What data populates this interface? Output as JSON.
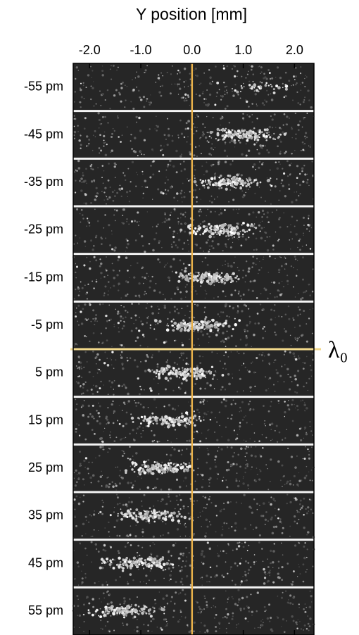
{
  "chart_data": {
    "type": "image-stack",
    "title": "Y position [mm]",
    "categories": [
      "-55 pm",
      "-45 pm",
      "-35 pm",
      "-25 pm",
      "-15 pm",
      "-5 pm",
      "5 pm",
      "15 pm",
      "25 pm",
      "35 pm",
      "45 pm",
      "55 pm"
    ],
    "xlim": [
      -2.32,
      2.38
    ],
    "xticks": [
      {
        "value": -2,
        "label": "-2.0"
      },
      {
        "value": -1,
        "label": "-1.0"
      },
      {
        "value": 0,
        "label": "0.0"
      },
      {
        "value": 1,
        "label": "1.0"
      },
      {
        "value": 2,
        "label": "2.0"
      }
    ],
    "reference_label": "λ₀",
    "reference_color": "#f2d98c",
    "zero_line_color": "#e8b04a"
  }
}
